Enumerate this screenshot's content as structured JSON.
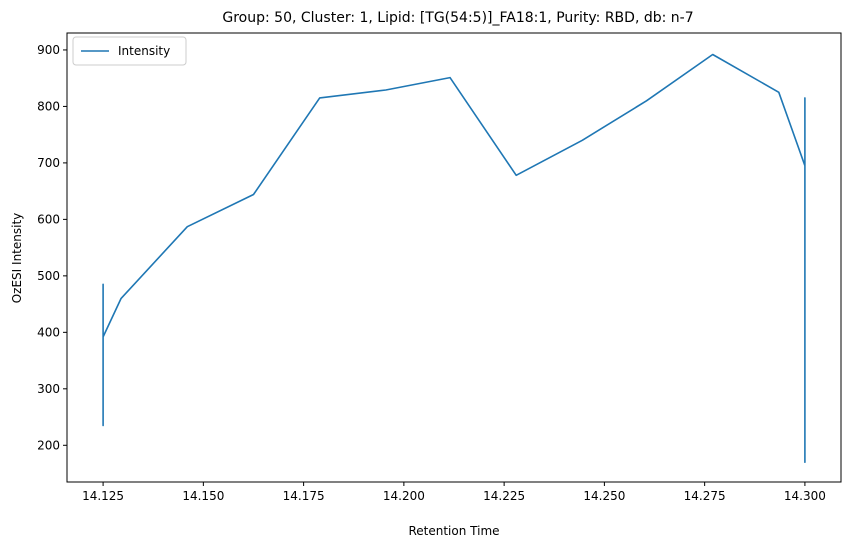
{
  "chart_data": {
    "type": "line",
    "title": "Group: 50, Cluster: 1, Lipid: [TG(54:5)]_FA18:1, Purity: RBD, db: n-7",
    "xlabel": "Retention Time",
    "ylabel": "OzESI Intensity",
    "xlim": [
      14.116,
      14.309
    ],
    "ylim": [
      135,
      930
    ],
    "xticks": [
      14.125,
      14.15,
      14.175,
      14.2,
      14.225,
      14.25,
      14.275,
      14.3
    ],
    "xtick_labels": [
      "14.125",
      "14.150",
      "14.175",
      "14.200",
      "14.225",
      "14.250",
      "14.275",
      "14.300"
    ],
    "yticks": [
      200,
      300,
      400,
      500,
      600,
      700,
      800,
      900
    ],
    "ytick_labels": [
      "200",
      "300",
      "400",
      "500",
      "600",
      "700",
      "800",
      "900"
    ],
    "grid": false,
    "legend": {
      "location": "upper-left"
    },
    "series": [
      {
        "name": "Intensity",
        "color": "#1f77b4",
        "x": [
          14.125,
          14.125,
          14.125,
          14.125,
          14.125,
          14.125,
          14.125,
          14.1295,
          14.146,
          14.1625,
          14.179,
          14.1955,
          14.2115,
          14.228,
          14.2445,
          14.2605,
          14.277,
          14.2935,
          14.3,
          14.3,
          14.3,
          14.3,
          14.3,
          14.3,
          14.3,
          14.3,
          14.3,
          14.3,
          14.3,
          14.3,
          14.3
        ],
        "y": [
          292,
          235,
          290,
          485,
          430,
          395,
          392,
          460,
          587,
          644,
          815,
          829,
          851,
          678,
          740,
          810,
          892,
          825,
          695,
          815,
          540,
          520,
          532,
          445,
          170,
          300,
          200,
          430,
          170,
          350,
          250
        ]
      }
    ]
  }
}
